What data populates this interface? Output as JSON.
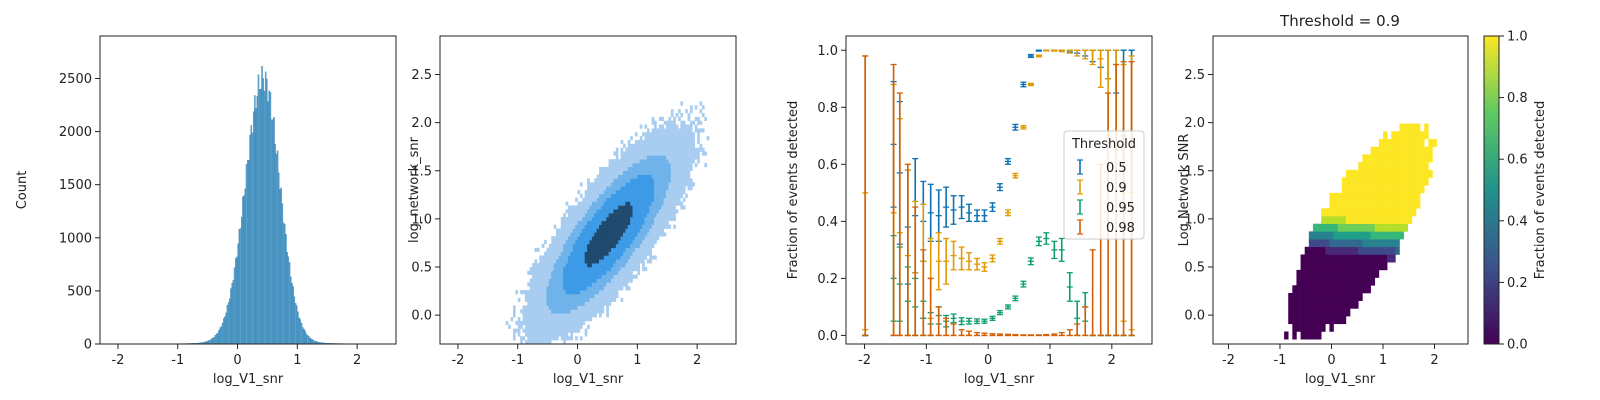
{
  "chart_data": [
    {
      "type": "histogram",
      "xlabel": "log_V1_snr",
      "ylabel": "Count",
      "xlim": [
        -2.3,
        2.65
      ],
      "ylim": [
        0,
        2900
      ],
      "xticks": [
        -2,
        -1,
        0,
        1,
        2
      ],
      "yticks": [
        0,
        500,
        1000,
        1500,
        2000,
        2500
      ],
      "bar_color": "#2f8cc4",
      "distribution": {
        "mean": 0.42,
        "std_left": 0.3,
        "std_right": 0.28,
        "peak": 2480
      }
    },
    {
      "type": "heatmap",
      "subtype": "2d-histogram",
      "xlabel": "log_V1_snr",
      "ylabel": "log_network_snr",
      "xlim": [
        -2.3,
        2.65
      ],
      "ylim": [
        -0.3,
        2.9
      ],
      "xticks": [
        -2,
        -1,
        0,
        1,
        2
      ],
      "yticks": [
        0.0,
        0.5,
        1.0,
        1.5,
        2.0,
        2.5
      ],
      "colors": {
        "light": "#a8cdf0",
        "mid": "#3c9ae6",
        "dark": "#1f4a6e"
      }
    },
    {
      "type": "scatter",
      "subtype": "errorbar",
      "xlabel": "log_V1_snr",
      "ylabel": "Fraction of events detected",
      "xlim": [
        -2.3,
        2.65
      ],
      "ylim": [
        -0.03,
        1.05
      ],
      "xticks": [
        -2,
        -1,
        0,
        1,
        2
      ],
      "yticks": [
        0.0,
        0.2,
        0.4,
        0.6,
        0.8,
        1.0
      ],
      "legend": {
        "title": "Threshold",
        "placement": "center-right"
      },
      "x": [
        -1.99,
        -1.53,
        -1.43,
        -1.3,
        -1.18,
        -1.05,
        -0.93,
        -0.8,
        -0.68,
        -0.56,
        -0.43,
        -0.31,
        -0.18,
        -0.06,
        0.07,
        0.19,
        0.32,
        0.44,
        0.57,
        0.69,
        0.82,
        0.94,
        1.07,
        1.19,
        1.32,
        1.44,
        1.57,
        1.69,
        1.82,
        1.94,
        2.07,
        2.19,
        2.32
      ],
      "series": [
        {
          "name": "0.5",
          "color": "#0b72b4",
          "values": [
            0.0,
            0.67,
            0.57,
            0.38,
            0.42,
            0.4,
            0.43,
            0.42,
            0.45,
            0.44,
            0.45,
            0.43,
            0.42,
            0.42,
            0.45,
            0.52,
            0.61,
            0.73,
            0.88,
            0.98,
            1.0,
            1.0,
            1.0,
            1.0,
            1.0,
            1.0,
            1.0,
            1.0,
            1.0,
            1.0,
            1.0,
            1.0,
            1.0
          ],
          "err": [
            0.0,
            0.22,
            0.25,
            0.2,
            0.2,
            0.14,
            0.1,
            0.09,
            0.07,
            0.05,
            0.04,
            0.03,
            0.02,
            0.02,
            0.015,
            0.012,
            0.01,
            0.01,
            0.008,
            0.005,
            0.003,
            0.002,
            0.002,
            0.003,
            0.006,
            0.01,
            0.02,
            0.04,
            0.06,
            0.1,
            0.15,
            0.3,
            0.5
          ]
        },
        {
          "name": "0.9",
          "color": "#e09b00",
          "values": [
            0.5,
            0.43,
            0.36,
            0.28,
            0.22,
            0.26,
            0.2,
            0.26,
            0.26,
            0.28,
            0.27,
            0.26,
            0.25,
            0.24,
            0.27,
            0.33,
            0.43,
            0.56,
            0.73,
            0.88,
            0.98,
            1.0,
            1.0,
            1.0,
            1.0,
            1.0,
            1.0,
            1.0,
            0.97,
            0.9,
            0.95,
            0.5,
            0.5
          ],
          "err": [
            0.48,
            0.45,
            0.4,
            0.3,
            0.25,
            0.2,
            0.14,
            0.1,
            0.08,
            0.05,
            0.04,
            0.03,
            0.02,
            0.015,
            0.012,
            0.01,
            0.01,
            0.008,
            0.006,
            0.004,
            0.003,
            0.002,
            0.003,
            0.005,
            0.01,
            0.02,
            0.03,
            0.05,
            0.1,
            0.2,
            0.3,
            0.45,
            0.48
          ]
        },
        {
          "name": "0.95",
          "color": "#109e73",
          "values": [
            0.0,
            0.2,
            0.18,
            0.12,
            0.1,
            0.06,
            0.04,
            0.07,
            0.05,
            0.06,
            0.05,
            0.05,
            0.05,
            0.05,
            0.06,
            0.08,
            0.1,
            0.13,
            0.18,
            0.26,
            0.33,
            0.34,
            0.3,
            0.3,
            0.17,
            0.06,
            0.1,
            0.0,
            0.0,
            0.0,
            0.0,
            0.0,
            0.0
          ],
          "err": [
            0.0,
            0.15,
            0.13,
            0.12,
            0.1,
            0.06,
            0.04,
            0.03,
            0.02,
            0.015,
            0.012,
            0.01,
            0.008,
            0.007,
            0.007,
            0.007,
            0.007,
            0.008,
            0.01,
            0.012,
            0.015,
            0.02,
            0.03,
            0.04,
            0.05,
            0.06,
            0.05,
            0.0,
            0.0,
            0.0,
            0.0,
            0.0,
            0.0
          ]
        },
        {
          "name": "0.98",
          "color": "#d55e00",
          "values": [
            0.0,
            0.0,
            0.0,
            0.0,
            0.0,
            0.0,
            0.0,
            0.0,
            0.0,
            0.0,
            0.0,
            0.0,
            0.0,
            0.0,
            0.0,
            0.0,
            0.0,
            0.0,
            0.0,
            0.0,
            0.0,
            0.0,
            0.0,
            0.0,
            0.0,
            0.0,
            0.0,
            0.0,
            0.0,
            0.0,
            0.0,
            0.0,
            0.0
          ],
          "err": [
            0.98,
            0.95,
            0.85,
            0.6,
            0.45,
            0.3,
            0.2,
            0.1,
            0.06,
            0.04,
            0.02,
            0.015,
            0.01,
            0.008,
            0.006,
            0.005,
            0.004,
            0.003,
            0.002,
            0.002,
            0.002,
            0.003,
            0.005,
            0.01,
            0.02,
            0.04,
            0.1,
            0.3,
            0.6,
            0.85,
            0.95,
            0.96,
            0.96
          ]
        }
      ]
    },
    {
      "type": "heatmap",
      "title": "Threshold = 0.9",
      "xlabel": "log_V1_snr",
      "ylabel": "Log Network SNR",
      "xlim": [
        -2.3,
        2.65
      ],
      "ylim": [
        -0.3,
        2.9
      ],
      "xticks": [
        -2,
        -1,
        0,
        1,
        2
      ],
      "yticks": [
        0.0,
        0.5,
        1.0,
        1.5,
        2.0,
        2.5
      ],
      "colorbar": {
        "label": "Fraction of events detected",
        "range": [
          0.0,
          1.0
        ],
        "ticks": [
          0.0,
          0.2,
          0.4,
          0.6,
          0.8,
          1.0
        ],
        "colormap": "viridis"
      }
    }
  ]
}
